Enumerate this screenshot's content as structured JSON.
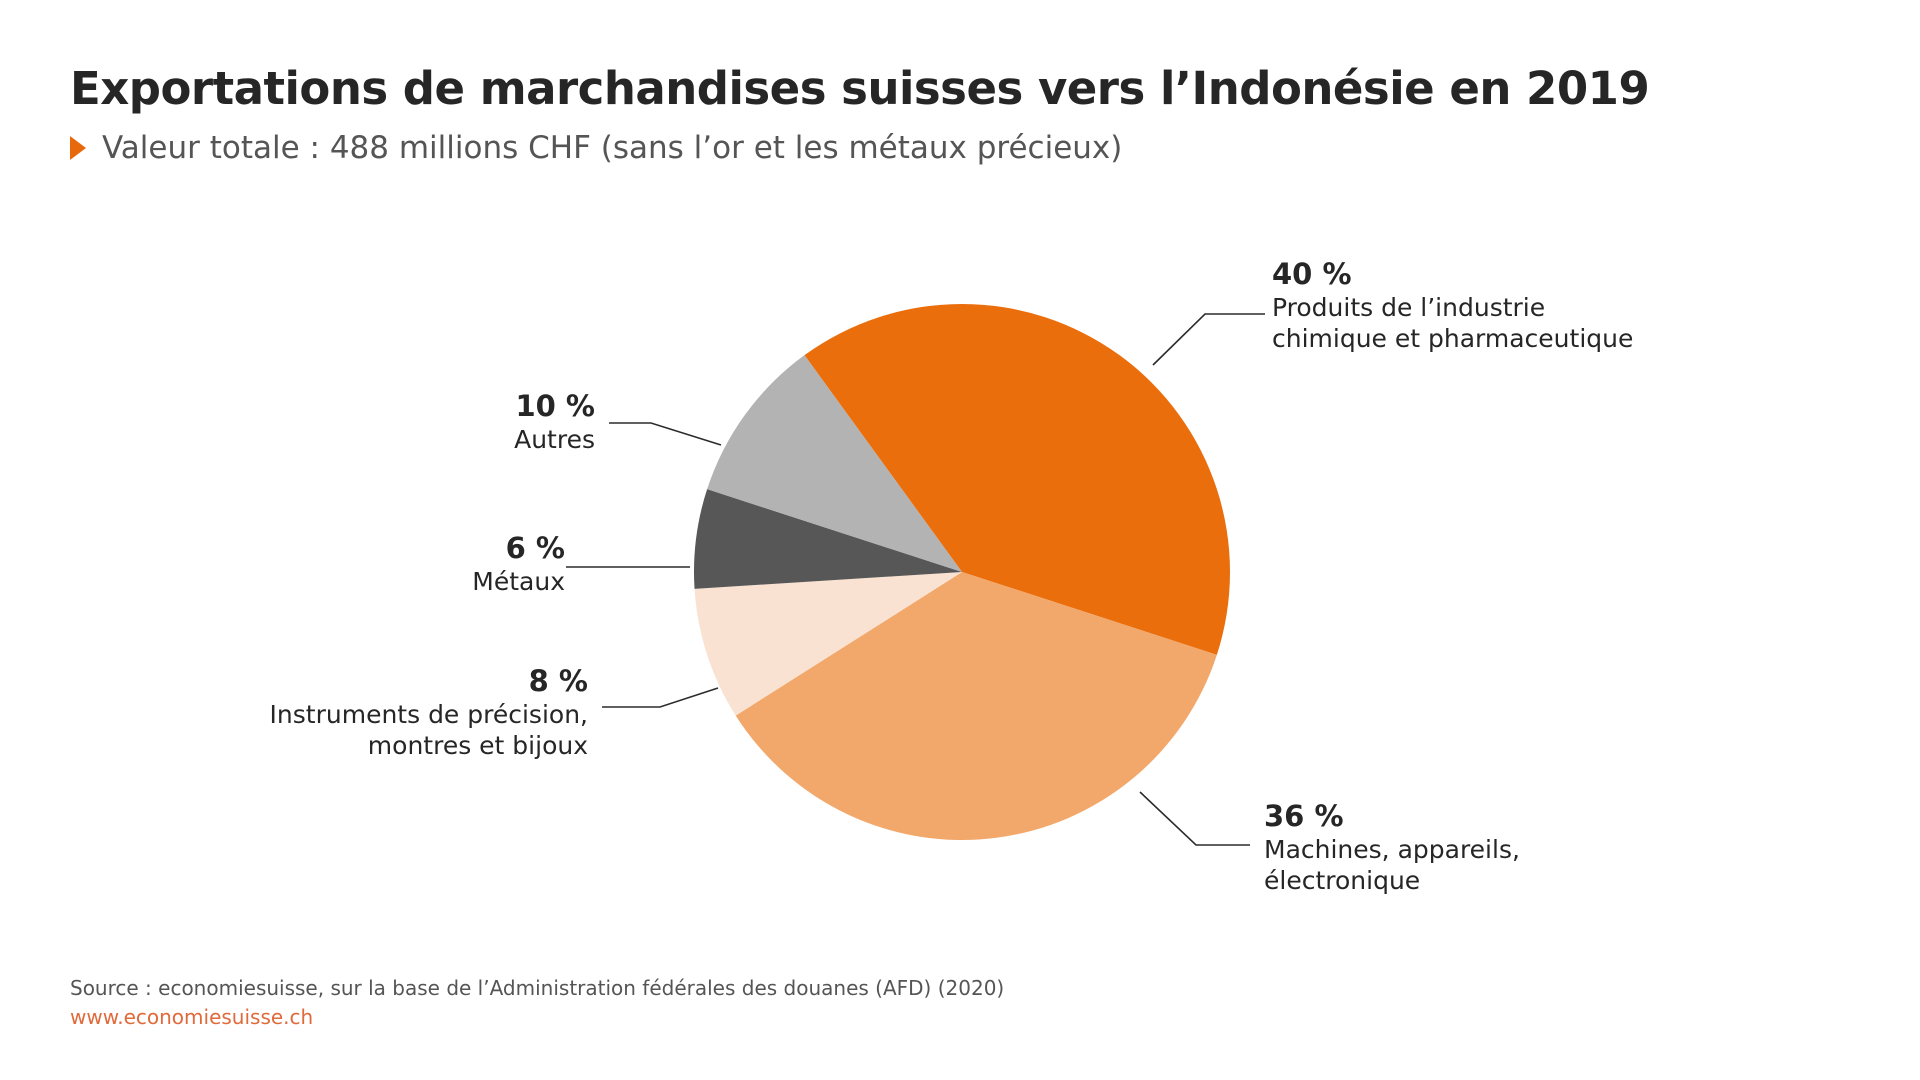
{
  "header": {
    "title": "Exportations de marchandises suisses vers l’Indonésie en 2019",
    "subtitle": "Valeur totale : 488 millions CHF (sans l’or et les métaux précieux)"
  },
  "footer": {
    "source": "Source : economiesuisse, sur la base de l’Administration fédérales des douanes (AFD) (2020)",
    "url": "www.economiesuisse.ch"
  },
  "colors": {
    "accent": "#e8690b"
  },
  "chart_data": {
    "type": "pie",
    "start_angle_deg": 324,
    "direction": "clockwise",
    "legend": "none",
    "slices": [
      {
        "key": "chimie",
        "percent_label": "40 %",
        "value": 40,
        "label_lines": [
          "Produits de l’industrie",
          "chimique et pharmaceutique"
        ],
        "color": "#eb6e0c",
        "label_side": "right"
      },
      {
        "key": "machines",
        "percent_label": "36 %",
        "value": 36,
        "label_lines": [
          "Machines, appareils,",
          "électronique"
        ],
        "color": "#f2a86b",
        "label_side": "right"
      },
      {
        "key": "instruments",
        "percent_label": "8 %",
        "value": 8,
        "label_lines": [
          "Instruments de précision,",
          "montres et bijoux"
        ],
        "color": "#fae2d2",
        "label_side": "left"
      },
      {
        "key": "metaux",
        "percent_label": "6 %",
        "value": 6,
        "label_lines": [
          "Métaux"
        ],
        "color": "#575757",
        "label_side": "left"
      },
      {
        "key": "autres",
        "percent_label": "10 %",
        "value": 10,
        "label_lines": [
          "Autres"
        ],
        "color": "#b3b3b3",
        "label_side": "left"
      }
    ]
  }
}
